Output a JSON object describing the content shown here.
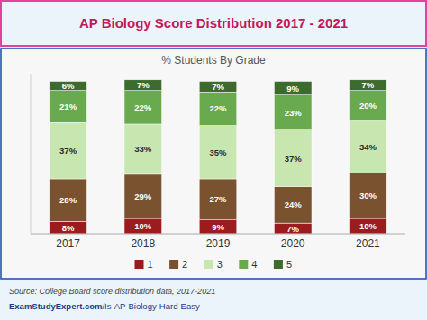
{
  "chart_data": {
    "type": "bar",
    "stacked": true,
    "title": "AP Biology Score Distribution 2017 - 2021",
    "subtitle": "% Students By Grade",
    "categories": [
      "2017",
      "2018",
      "2019",
      "2020",
      "2021"
    ],
    "series": [
      {
        "name": "1",
        "color": "#9b1c1c",
        "values": [
          8,
          10,
          9,
          7,
          10
        ],
        "value_labels": [
          "8%",
          "10%",
          "9%",
          "7%",
          "10%"
        ]
      },
      {
        "name": "2",
        "color": "#7a5230",
        "values": [
          28,
          29,
          27,
          24,
          30
        ],
        "value_labels": [
          "28%",
          "29%",
          "27%",
          "24%",
          "30%"
        ]
      },
      {
        "name": "3",
        "color": "#c8e6b0",
        "values": [
          37,
          33,
          35,
          37,
          34
        ],
        "value_labels": [
          "37%",
          "33%",
          "35%",
          "37%",
          "34%"
        ]
      },
      {
        "name": "4",
        "color": "#6aaa4e",
        "values": [
          21,
          22,
          22,
          23,
          20
        ],
        "value_labels": [
          "21%",
          "22%",
          "22%",
          "23%",
          "20%"
        ]
      },
      {
        "name": "5",
        "color": "#3d6b2e",
        "values": [
          6,
          7,
          7,
          9,
          7
        ],
        "value_labels": [
          "6%",
          "7%",
          "7%",
          "9%",
          "7%"
        ]
      }
    ],
    "ylim": [
      0,
      105
    ],
    "data_labels": true,
    "tick_labels": "x",
    "grid": false,
    "legend": "bottom",
    "annotations": [
      "Source: College Board score distribution data, 2017-2021",
      "ExamStudyExpert.com",
      "/Is-AP-Biology-Hard-Easy"
    ]
  }
}
